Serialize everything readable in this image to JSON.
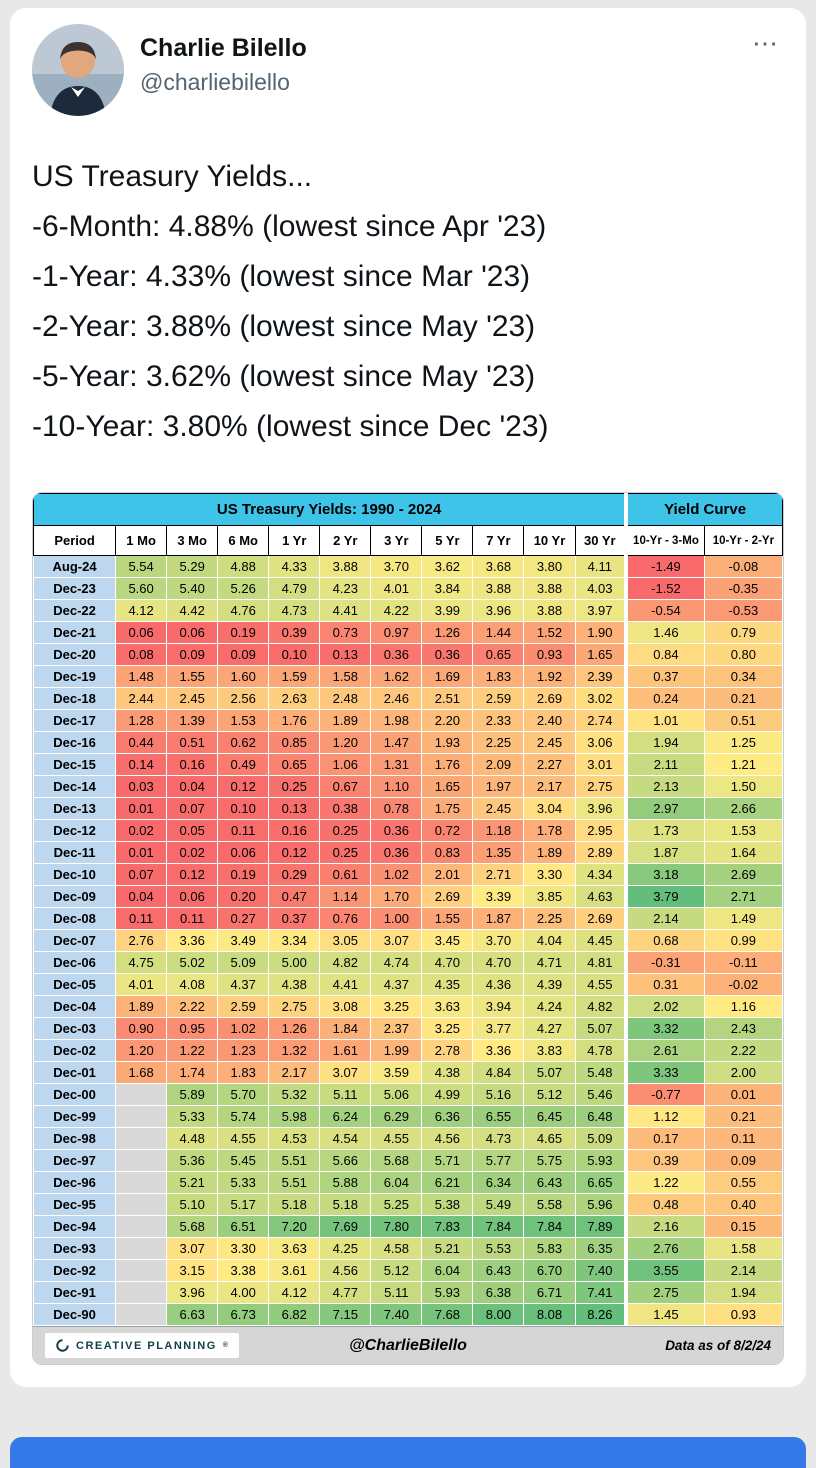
{
  "page": {
    "background": "#E8E8E8",
    "card_background": "#FFFFFF",
    "bottom_bar_color": "#3579E8"
  },
  "tweet": {
    "author": "Charlie Bilello",
    "handle": "@charliebilello",
    "more_label": "⋯",
    "body_lines": [
      "US Treasury Yields...",
      "-6-Month: 4.88% (lowest since Apr '23)",
      "-1-Year: 4.33% (lowest since Mar '23)",
      "-2-Year: 3.88% (lowest since May '23)",
      "-5-Year: 3.62% (lowest since May '23)",
      "-10-Year: 3.80% (lowest since Dec '23)"
    ]
  },
  "chart_data": {
    "type": "heatmap",
    "title": "US Treasury Yields: 1990 - 2024",
    "yield_curve_title": "Yield Curve",
    "columns": [
      "Period",
      "1 Mo",
      "3 Mo",
      "6 Mo",
      "1 Yr",
      "2 Yr",
      "3 Yr",
      "5 Yr",
      "7 Yr",
      "10 Yr",
      "30 Yr",
      "10-Yr - 3-Mo",
      "10-Yr - 2-Yr"
    ],
    "rows": [
      {
        "period": "Aug-24",
        "yields": [
          5.54,
          5.29,
          4.88,
          4.33,
          3.88,
          3.7,
          3.62,
          3.68,
          3.8,
          4.11
        ],
        "curve": [
          -1.49,
          -0.08
        ]
      },
      {
        "period": "Dec-23",
        "yields": [
          5.6,
          5.4,
          5.26,
          4.79,
          4.23,
          4.01,
          3.84,
          3.88,
          3.88,
          4.03
        ],
        "curve": [
          -1.52,
          -0.35
        ]
      },
      {
        "period": "Dec-22",
        "yields": [
          4.12,
          4.42,
          4.76,
          4.73,
          4.41,
          4.22,
          3.99,
          3.96,
          3.88,
          3.97
        ],
        "curve": [
          -0.54,
          -0.53
        ]
      },
      {
        "period": "Dec-21",
        "yields": [
          0.06,
          0.06,
          0.19,
          0.39,
          0.73,
          0.97,
          1.26,
          1.44,
          1.52,
          1.9
        ],
        "curve": [
          1.46,
          0.79
        ]
      },
      {
        "period": "Dec-20",
        "yields": [
          0.08,
          0.09,
          0.09,
          0.1,
          0.13,
          0.36,
          0.36,
          0.65,
          0.93,
          1.65
        ],
        "curve": [
          0.84,
          0.8
        ]
      },
      {
        "period": "Dec-19",
        "yields": [
          1.48,
          1.55,
          1.6,
          1.59,
          1.58,
          1.62,
          1.69,
          1.83,
          1.92,
          2.39
        ],
        "curve": [
          0.37,
          0.34
        ]
      },
      {
        "period": "Dec-18",
        "yields": [
          2.44,
          2.45,
          2.56,
          2.63,
          2.48,
          2.46,
          2.51,
          2.59,
          2.69,
          3.02
        ],
        "curve": [
          0.24,
          0.21
        ]
      },
      {
        "period": "Dec-17",
        "yields": [
          1.28,
          1.39,
          1.53,
          1.76,
          1.89,
          1.98,
          2.2,
          2.33,
          2.4,
          2.74
        ],
        "curve": [
          1.01,
          0.51
        ]
      },
      {
        "period": "Dec-16",
        "yields": [
          0.44,
          0.51,
          0.62,
          0.85,
          1.2,
          1.47,
          1.93,
          2.25,
          2.45,
          3.06
        ],
        "curve": [
          1.94,
          1.25
        ]
      },
      {
        "period": "Dec-15",
        "yields": [
          0.14,
          0.16,
          0.49,
          0.65,
          1.06,
          1.31,
          1.76,
          2.09,
          2.27,
          3.01
        ],
        "curve": [
          2.11,
          1.21
        ]
      },
      {
        "period": "Dec-14",
        "yields": [
          0.03,
          0.04,
          0.12,
          0.25,
          0.67,
          1.1,
          1.65,
          1.97,
          2.17,
          2.75
        ],
        "curve": [
          2.13,
          1.5
        ]
      },
      {
        "period": "Dec-13",
        "yields": [
          0.01,
          0.07,
          0.1,
          0.13,
          0.38,
          0.78,
          1.75,
          2.45,
          3.04,
          3.96
        ],
        "curve": [
          2.97,
          2.66
        ]
      },
      {
        "period": "Dec-12",
        "yields": [
          0.02,
          0.05,
          0.11,
          0.16,
          0.25,
          0.36,
          0.72,
          1.18,
          1.78,
          2.95
        ],
        "curve": [
          1.73,
          1.53
        ]
      },
      {
        "period": "Dec-11",
        "yields": [
          0.01,
          0.02,
          0.06,
          0.12,
          0.25,
          0.36,
          0.83,
          1.35,
          1.89,
          2.89
        ],
        "curve": [
          1.87,
          1.64
        ]
      },
      {
        "period": "Dec-10",
        "yields": [
          0.07,
          0.12,
          0.19,
          0.29,
          0.61,
          1.02,
          2.01,
          2.71,
          3.3,
          4.34
        ],
        "curve": [
          3.18,
          2.69
        ]
      },
      {
        "period": "Dec-09",
        "yields": [
          0.04,
          0.06,
          0.2,
          0.47,
          1.14,
          1.7,
          2.69,
          3.39,
          3.85,
          4.63
        ],
        "curve": [
          3.79,
          2.71
        ]
      },
      {
        "period": "Dec-08",
        "yields": [
          0.11,
          0.11,
          0.27,
          0.37,
          0.76,
          1.0,
          1.55,
          1.87,
          2.25,
          2.69
        ],
        "curve": [
          2.14,
          1.49
        ]
      },
      {
        "period": "Dec-07",
        "yields": [
          2.76,
          3.36,
          3.49,
          3.34,
          3.05,
          3.07,
          3.45,
          3.7,
          4.04,
          4.45
        ],
        "curve": [
          0.68,
          0.99
        ]
      },
      {
        "period": "Dec-06",
        "yields": [
          4.75,
          5.02,
          5.09,
          5.0,
          4.82,
          4.74,
          4.7,
          4.7,
          4.71,
          4.81
        ],
        "curve": [
          -0.31,
          -0.11
        ]
      },
      {
        "period": "Dec-05",
        "yields": [
          4.01,
          4.08,
          4.37,
          4.38,
          4.41,
          4.37,
          4.35,
          4.36,
          4.39,
          4.55
        ],
        "curve": [
          0.31,
          -0.02
        ]
      },
      {
        "period": "Dec-04",
        "yields": [
          1.89,
          2.22,
          2.59,
          2.75,
          3.08,
          3.25,
          3.63,
          3.94,
          4.24,
          4.82
        ],
        "curve": [
          2.02,
          1.16
        ]
      },
      {
        "period": "Dec-03",
        "yields": [
          0.9,
          0.95,
          1.02,
          1.26,
          1.84,
          2.37,
          3.25,
          3.77,
          4.27,
          5.07
        ],
        "curve": [
          3.32,
          2.43
        ]
      },
      {
        "period": "Dec-02",
        "yields": [
          1.2,
          1.22,
          1.23,
          1.32,
          1.61,
          1.99,
          2.78,
          3.36,
          3.83,
          4.78
        ],
        "curve": [
          2.61,
          2.22
        ]
      },
      {
        "period": "Dec-01",
        "yields": [
          1.68,
          1.74,
          1.83,
          2.17,
          3.07,
          3.59,
          4.38,
          4.84,
          5.07,
          5.48
        ],
        "curve": [
          3.33,
          2.0
        ]
      },
      {
        "period": "Dec-00",
        "yields": [
          null,
          5.89,
          5.7,
          5.32,
          5.11,
          5.06,
          4.99,
          5.16,
          5.12,
          5.46
        ],
        "curve": [
          -0.77,
          0.01
        ]
      },
      {
        "period": "Dec-99",
        "yields": [
          null,
          5.33,
          5.74,
          5.98,
          6.24,
          6.29,
          6.36,
          6.55,
          6.45,
          6.48
        ],
        "curve": [
          1.12,
          0.21
        ]
      },
      {
        "period": "Dec-98",
        "yields": [
          null,
          4.48,
          4.55,
          4.53,
          4.54,
          4.55,
          4.56,
          4.73,
          4.65,
          5.09
        ],
        "curve": [
          0.17,
          0.11
        ]
      },
      {
        "period": "Dec-97",
        "yields": [
          null,
          5.36,
          5.45,
          5.51,
          5.66,
          5.68,
          5.71,
          5.77,
          5.75,
          5.93
        ],
        "curve": [
          0.39,
          0.09
        ]
      },
      {
        "period": "Dec-96",
        "yields": [
          null,
          5.21,
          5.33,
          5.51,
          5.88,
          6.04,
          6.21,
          6.34,
          6.43,
          6.65
        ],
        "curve": [
          1.22,
          0.55
        ]
      },
      {
        "period": "Dec-95",
        "yields": [
          null,
          5.1,
          5.17,
          5.18,
          5.18,
          5.25,
          5.38,
          5.49,
          5.58,
          5.96
        ],
        "curve": [
          0.48,
          0.4
        ]
      },
      {
        "period": "Dec-94",
        "yields": [
          null,
          5.68,
          6.51,
          7.2,
          7.69,
          7.8,
          7.83,
          7.84,
          7.84,
          7.89
        ],
        "curve": [
          2.16,
          0.15
        ]
      },
      {
        "period": "Dec-93",
        "yields": [
          null,
          3.07,
          3.3,
          3.63,
          4.25,
          4.58,
          5.21,
          5.53,
          5.83,
          6.35
        ],
        "curve": [
          2.76,
          1.58
        ]
      },
      {
        "period": "Dec-92",
        "yields": [
          null,
          3.15,
          3.38,
          3.61,
          4.56,
          5.12,
          6.04,
          6.43,
          6.7,
          7.4
        ],
        "curve": [
          3.55,
          2.14
        ]
      },
      {
        "period": "Dec-91",
        "yields": [
          null,
          3.96,
          4.0,
          4.12,
          4.77,
          5.11,
          5.93,
          6.38,
          6.71,
          7.41
        ],
        "curve": [
          2.75,
          1.94
        ]
      },
      {
        "period": "Dec-90",
        "yields": [
          null,
          6.63,
          6.73,
          6.82,
          7.15,
          7.4,
          7.68,
          8.0,
          8.08,
          8.26
        ],
        "curve": [
          1.45,
          0.93
        ]
      }
    ],
    "footer": {
      "brand": "CREATIVE PLANNING",
      "reg": "®",
      "handle": "@CharlieBilello",
      "data_as_of": "Data as of 8/2/24"
    },
    "colors": {
      "low": "#F8696B",
      "mid": "#FFEB84",
      "high": "#63BE7B",
      "empty": "#D9D9D9",
      "title_bg": "#3EC4E8",
      "period_bg": "#BDD7EE",
      "footer_bg": "#D6D6D6"
    }
  }
}
